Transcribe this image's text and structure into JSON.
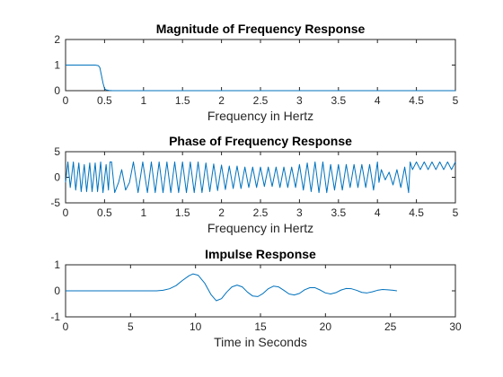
{
  "chart_data": [
    {
      "type": "line",
      "title": "Magnitude of Frequency Response",
      "xlabel": "Frequency in Hertz",
      "ylabel": "",
      "xlim": [
        0,
        5
      ],
      "ylim": [
        0,
        2
      ],
      "xticks": [
        "0",
        "0.5",
        "1",
        "1.5",
        "2",
        "2.5",
        "3",
        "3.5",
        "4",
        "4.5",
        "5"
      ],
      "yticks": [
        "0",
        "1",
        "2"
      ],
      "grid": false,
      "color": "#0072BD",
      "series": [
        {
          "x": [
            0,
            0.1,
            0.2,
            0.3,
            0.38,
            0.42,
            0.44,
            0.46,
            0.48,
            0.5,
            0.52,
            0.56,
            0.6,
            1,
            2,
            3,
            4,
            5
          ],
          "values": [
            1,
            1,
            1,
            1,
            1,
            0.98,
            0.9,
            0.6,
            0.3,
            0.08,
            0.03,
            0.01,
            0,
            0,
            0,
            0,
            0,
            0
          ]
        }
      ]
    },
    {
      "type": "line",
      "title": "Phase of Frequency Response",
      "xlabel": "Frequency in Hertz",
      "ylabel": "",
      "xlim": [
        0,
        5
      ],
      "ylim": [
        -5,
        5
      ],
      "xticks": [
        "0",
        "0.5",
        "1",
        "1.5",
        "2",
        "2.5",
        "3",
        "3.5",
        "4",
        "4.5",
        "5"
      ],
      "yticks": [
        "-5",
        "0",
        "5"
      ],
      "grid": false,
      "color": "#0072BD",
      "series": [
        {
          "x": [
            0,
            0.03,
            0.06,
            0.1,
            0.13,
            0.17,
            0.2,
            0.24,
            0.27,
            0.31,
            0.34,
            0.38,
            0.41,
            0.45,
            0.48,
            0.52,
            0.55,
            0.57,
            0.59,
            0.63,
            0.68,
            0.72,
            0.77,
            0.82,
            0.87,
            0.93,
            0.99,
            1.05,
            1.1,
            1.15,
            1.2,
            1.25,
            1.3,
            1.35,
            1.4,
            1.45,
            1.5,
            1.55,
            1.6,
            1.65,
            1.7,
            1.75,
            1.8,
            1.85,
            1.9,
            1.95,
            2.0,
            2.05,
            2.1,
            2.15,
            2.2,
            2.25,
            2.3,
            2.35,
            2.4,
            2.45,
            2.5,
            2.55,
            2.6,
            2.65,
            2.7,
            2.75,
            2.8,
            2.85,
            2.9,
            2.95,
            3.0,
            3.05,
            3.1,
            3.15,
            3.2,
            3.25,
            3.3,
            3.35,
            3.4,
            3.45,
            3.5,
            3.55,
            3.6,
            3.65,
            3.7,
            3.75,
            3.8,
            3.85,
            3.9,
            3.95,
            4.0,
            4.02,
            4.05,
            4.1,
            4.15,
            4.2,
            4.25,
            4.3,
            4.35,
            4.4,
            4.42,
            4.45,
            4.5,
            4.55,
            4.6,
            4.65,
            4.7,
            4.75,
            4.8,
            4.85,
            4.9,
            4.95,
            5.0
          ],
          "values": [
            -1,
            3,
            -2,
            3,
            -2.5,
            2.8,
            -2.8,
            2.5,
            -2.8,
            2.8,
            -2.8,
            2.8,
            -2.8,
            3,
            -3,
            2.5,
            -2.5,
            3,
            3,
            -3,
            -1,
            1.5,
            -2.5,
            -1,
            3,
            -3,
            3,
            -3,
            3,
            -3,
            3,
            -3,
            3,
            -3,
            3,
            -3,
            3,
            -3,
            3,
            -3,
            3,
            -3,
            2.8,
            -2.8,
            2.6,
            -2.6,
            2.4,
            -2.4,
            2.2,
            -2.2,
            2.2,
            -2.2,
            2,
            -2,
            2,
            -2,
            2,
            -1.8,
            2,
            -1.8,
            2,
            -2,
            2,
            -2,
            2,
            -2,
            2.5,
            -2.5,
            2.8,
            -2.8,
            3,
            -3,
            3,
            -3,
            2.5,
            -2.5,
            2.5,
            -2.5,
            2.5,
            -2,
            2.5,
            -2,
            2.5,
            -2,
            2.5,
            -2.5,
            3,
            -1,
            1.5,
            -0.5,
            1,
            -1.5,
            1.5,
            -2,
            2,
            -3,
            3,
            1.5,
            3,
            1.5,
            3,
            1.5,
            3,
            1.5,
            3,
            1.5,
            3,
            1.5,
            3
          ]
        }
      ]
    },
    {
      "type": "line",
      "title": "Impulse Response",
      "xlabel": "Time in Seconds",
      "ylabel": "",
      "xlim": [
        0,
        30
      ],
      "ylim": [
        -1,
        1
      ],
      "xticks": [
        "0",
        "5",
        "10",
        "15",
        "20",
        "25",
        "30"
      ],
      "yticks": [
        "-1",
        "0",
        "1"
      ],
      "grid": false,
      "color": "#0072BD",
      "series": [
        {
          "x": [
            0,
            5,
            7,
            7.5,
            8,
            8.5,
            9,
            9.5,
            9.8,
            10.2,
            10.7,
            11.2,
            11.6,
            12,
            12.4,
            12.8,
            13.2,
            13.6,
            14,
            14.4,
            14.8,
            15.2,
            15.6,
            16,
            16.4,
            16.8,
            17.2,
            17.6,
            18,
            18.4,
            18.8,
            19.2,
            19.6,
            20,
            20.4,
            20.8,
            21.2,
            21.6,
            22,
            22.4,
            22.8,
            23.2,
            23.6,
            24,
            24.4,
            24.8,
            25.2,
            25.5
          ],
          "values": [
            0,
            0,
            0,
            0.02,
            0.08,
            0.2,
            0.4,
            0.58,
            0.65,
            0.6,
            0.3,
            -0.15,
            -0.38,
            -0.3,
            -0.05,
            0.15,
            0.22,
            0.15,
            -0.05,
            -0.2,
            -0.22,
            -0.1,
            0.08,
            0.18,
            0.15,
            0.02,
            -0.12,
            -0.16,
            -0.1,
            0.04,
            0.12,
            0.12,
            0.03,
            -0.08,
            -0.12,
            -0.07,
            0.03,
            0.09,
            0.08,
            0.02,
            -0.06,
            -0.08,
            -0.04,
            0.02,
            0.05,
            0.04,
            0.02,
            0
          ]
        }
      ]
    }
  ]
}
